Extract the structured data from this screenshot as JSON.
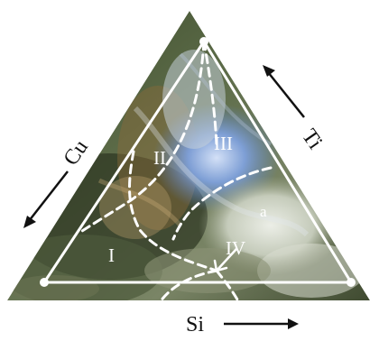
{
  "diagram": {
    "axis_labels": {
      "cu": "Cu",
      "ti": "Ti",
      "si": "Si"
    },
    "regions": [
      "I",
      "II",
      "III",
      "IV"
    ],
    "sub_region": "a",
    "colors": {
      "background_dark": "#2f3a24",
      "background_mid": "#6e7d5a",
      "accent_blue": "#5d84c8",
      "accent_light": "#e8ece8",
      "line": "#ffffff"
    }
  }
}
